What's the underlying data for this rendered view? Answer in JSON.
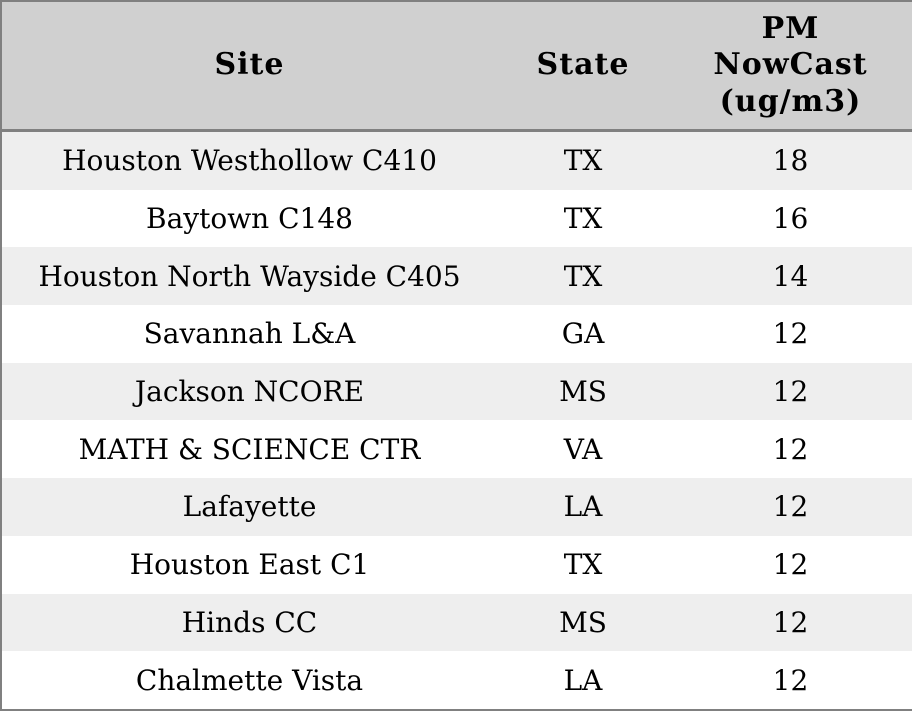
{
  "headers": {
    "site": "Site",
    "state": "State",
    "pm_nowcast": "PM\nNowCast\n(ug/m3)"
  },
  "chart_data": {
    "type": "table",
    "columns": [
      "Site",
      "State",
      "PM NowCast (ug/m3)"
    ],
    "rows": [
      [
        "Houston Westhollow C410",
        "TX",
        18
      ],
      [
        "Baytown C148",
        "TX",
        16
      ],
      [
        "Houston North Wayside C405",
        "TX",
        14
      ],
      [
        "Savannah L&A",
        "GA",
        12
      ],
      [
        "Jackson NCORE",
        "MS",
        12
      ],
      [
        "MATH & SCIENCE CTR",
        "VA",
        12
      ],
      [
        "Lafayette",
        "LA",
        12
      ],
      [
        "Houston East C1",
        "TX",
        12
      ],
      [
        "Hinds CC",
        "MS",
        12
      ],
      [
        "Chalmette Vista",
        "LA",
        12
      ]
    ],
    "layout": {
      "header_lines_pm_column": [
        "PM",
        "NowCast",
        "(ug/m3)"
      ],
      "row_striping": "alternating, first body row shaded",
      "alignment": "all cells centered"
    }
  },
  "colors": {
    "border": "#808080",
    "header_bg": "#d0d0d0",
    "row_stripe_bg": "#eeeeee",
    "row_bg": "#ffffff",
    "text": "#000000"
  }
}
